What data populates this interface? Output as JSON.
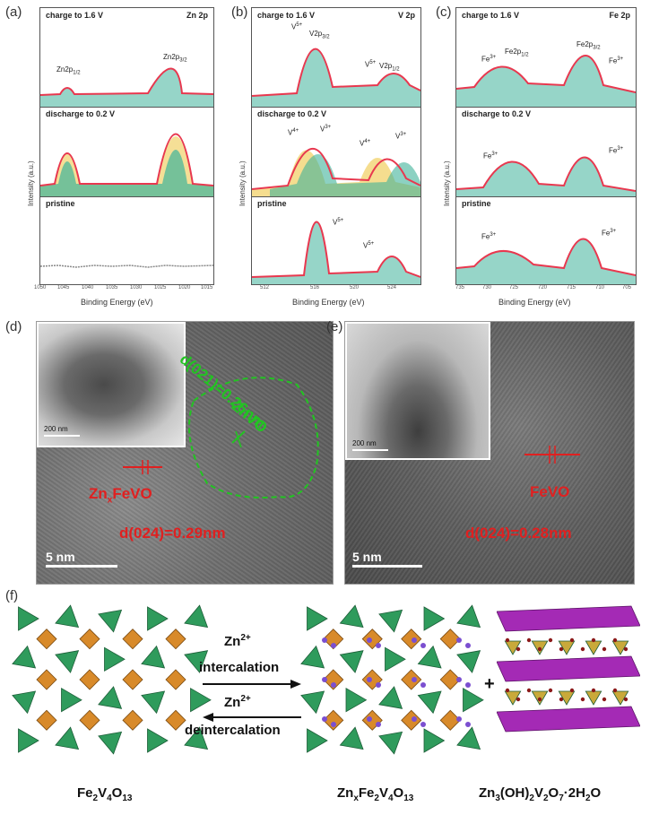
{
  "panels": {
    "a": {
      "label": "(a)",
      "element": "Zn 2p",
      "rows": [
        {
          "condition": "charge to 1.6 V",
          "peaks": [
            "Zn2p1/2",
            "Zn2p3/2"
          ]
        },
        {
          "condition": "discharge to 0.2 V",
          "peaks": []
        },
        {
          "condition": "pristine",
          "peaks": []
        }
      ],
      "xlabel": "Binding Energy (eV)",
      "ylabel": "Intensity (a.u.)",
      "ticks": [
        "1050",
        "1045",
        "1040",
        "1035",
        "1030",
        "1025",
        "1020",
        "1015"
      ]
    },
    "b": {
      "label": "(b)",
      "element": "V 2p",
      "rows": [
        {
          "condition": "charge to 1.6 V",
          "peaks": [
            "V5+",
            "V2p3/2",
            "V5+",
            "V2p1/2"
          ]
        },
        {
          "condition": "discharge to 0.2 V",
          "peaks": [
            "V4+",
            "V3+",
            "V4+",
            "V3+"
          ]
        },
        {
          "condition": "pristine",
          "peaks": [
            "V5+",
            "V5+"
          ]
        }
      ],
      "xlabel": "Binding Energy (eV)",
      "ylabel": "Intensity (a.u.)",
      "ticks": [
        "512",
        "516",
        "520",
        "524"
      ]
    },
    "c": {
      "label": "(c)",
      "element": "Fe 2p",
      "rows": [
        {
          "condition": "charge to 1.6 V",
          "peaks": [
            "Fe3+",
            "Fe2p1/2",
            "Fe2p3/2",
            "Fe3+"
          ]
        },
        {
          "condition": "discharge to 0.2 V",
          "peaks": [
            "Fe3+",
            "Fe3+"
          ]
        },
        {
          "condition": "pristine",
          "peaks": [
            "Fe3+",
            "Fe3+"
          ]
        }
      ],
      "xlabel": "Binding Energy (eV)",
      "ylabel": "Intensity (a.u.)",
      "ticks": [
        "735",
        "730",
        "725",
        "720",
        "715",
        "710",
        "705"
      ]
    },
    "d": {
      "label": "(d)",
      "scale_inset": "200 nm",
      "scale_main": "5 nm",
      "d_green": "d(021)=0.26nm",
      "phase_green": "ZnVO",
      "phase_red": "ZnxFeVO",
      "d_red": "d(024)=0.29nm"
    },
    "e": {
      "label": "(e)",
      "scale_inset": "200 nm",
      "scale_main": "5 nm",
      "phase_red": "FeVO",
      "d_red": "d(024)=0.28nm"
    },
    "f": {
      "label": "(f)",
      "ion": "Zn2+",
      "forward": "intercalation",
      "reverse": "deintercalation",
      "plus": "+",
      "formula_left": "Fe2V4O13",
      "formula_mid": "ZnxFe2V4O13",
      "formula_right": "Zn3(OH)2V2O7·2H2O"
    }
  },
  "colors": {
    "fit_red": "#e8384f",
    "fill_teal": "#3fb39a",
    "fill_yellow": "#f1d26a",
    "label_red": "#e02020",
    "label_green": "#22c422",
    "polyhedra_green": "#2f9b5c",
    "polyhedra_orange": "#d88a2a",
    "polyhedra_purple": "#a42ab5"
  }
}
